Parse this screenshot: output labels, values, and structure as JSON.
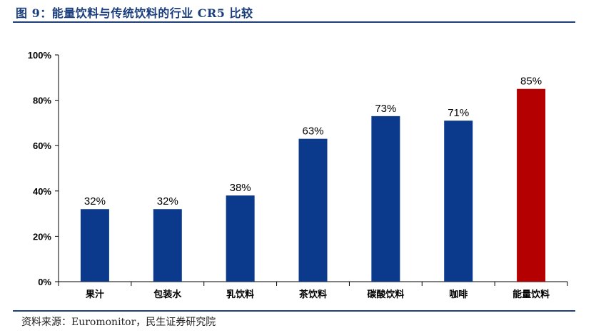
{
  "header": {
    "title": "图 9：能量饮料与传统饮料的行业 CR5 比较"
  },
  "footer": {
    "source": "资料来源：Euromonitor，民生证券研究院"
  },
  "colors": {
    "bar_default": "#0b3a8c",
    "bar_highlight": "#b40000",
    "rule": "#1f3f7a"
  },
  "chart_data": {
    "type": "bar",
    "categories": [
      "果汁",
      "包装水",
      "乳饮料",
      "茶饮料",
      "碳酸饮料",
      "咖啡",
      "能量饮料"
    ],
    "values": [
      32,
      32,
      38,
      63,
      73,
      71,
      85
    ],
    "data_labels": [
      "32%",
      "32%",
      "38%",
      "63%",
      "73%",
      "71%",
      "85%"
    ],
    "highlight_category": "能量饮料",
    "ylim": [
      0,
      100
    ],
    "yticks": [
      0,
      20,
      40,
      60,
      80,
      100
    ],
    "ytick_labels": [
      "0%",
      "20%",
      "40%",
      "60%",
      "80%",
      "100%"
    ],
    "grid": false,
    "legend": "none"
  }
}
